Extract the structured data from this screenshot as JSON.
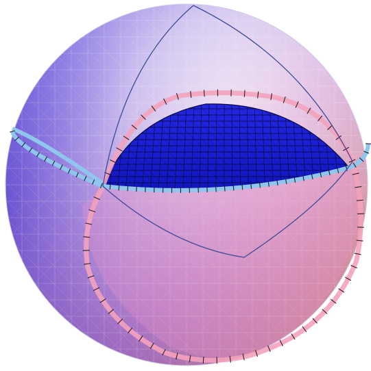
{
  "figure": {
    "type": "3d-sphere-rendering",
    "colors": {
      "background": "#ffffff",
      "sphere_top_left": "#5a4ef2",
      "sphere_top_right": "#f2eef8",
      "sphere_bottom_left": "#8a62c8",
      "sphere_bottom_right": "#f2a070",
      "mesh_lines": "#ffffff",
      "inner_cap": "#1a1ed8",
      "inner_cap_mesh": "#05052a",
      "equator_ring": "#8ec6ee",
      "vertical_ring": "#f4a2bc",
      "tick_marks": "#111111",
      "geodesic_lines": "#3c4a9a"
    },
    "elements": [
      {
        "name": "outer-sphere",
        "description_visible": false
      },
      {
        "name": "inner-blue-cap",
        "description_visible": false
      },
      {
        "name": "equator-ring",
        "description_visible": false
      },
      {
        "name": "vertical-ring",
        "description_visible": false
      },
      {
        "name": "geodesic-triangle",
        "description_visible": false
      }
    ]
  }
}
